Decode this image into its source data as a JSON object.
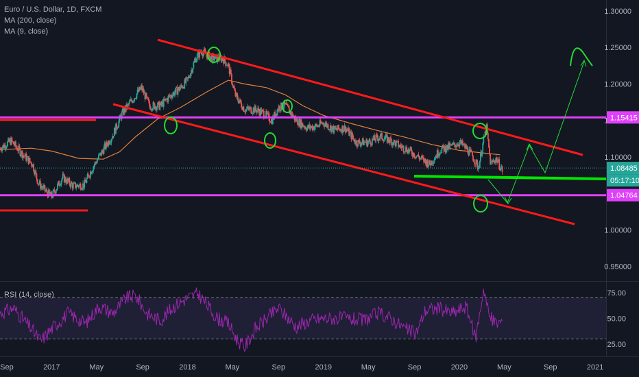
{
  "legend": {
    "symbol": "Euro / U.S. Dollar, 1D, FXCM",
    "ma200": "MA (200, close)",
    "ma9": "MA (9, close)"
  },
  "rsi_legend": "RSI (14, close)",
  "colors": {
    "background": "#131722",
    "candle_up": "#26a69a",
    "candle_down": "#ef5350",
    "ma200": "#e0823d",
    "channel": "#ff1a1a",
    "level_magenta": "#e040fb",
    "support_green": "#00e600",
    "annotation_green": "#22dd33",
    "rsi_line": "#9c27b0",
    "rsi_band": "#7e57c2"
  },
  "chart_data": [
    {
      "type": "line",
      "title": "Euro / U.S. Dollar, 1D, FXCM",
      "y_axis": {
        "ylim": [
          0.93,
          1.315
        ],
        "ticks": [
          "1.30000",
          "1.25000",
          "1.20000",
          "1.15000",
          "1.10000",
          "1.00000",
          "0.95000"
        ],
        "tick_values": [
          1.3,
          1.25,
          1.2,
          1.15,
          1.1,
          1.0,
          0.95
        ]
      },
      "x_axis": {
        "xlim": [
          2016.62,
          2021.08
        ],
        "ticks": [
          "Sep",
          "2017",
          "May",
          "Sep",
          "2018",
          "May",
          "Sep",
          "2019",
          "May",
          "Sep",
          "2020",
          "May",
          "Sep",
          "2021"
        ],
        "tick_values": [
          2016.67,
          2017.0,
          2017.33,
          2017.67,
          2018.0,
          2018.33,
          2018.67,
          2019.0,
          2019.33,
          2019.67,
          2020.0,
          2020.33,
          2020.67,
          2021.0
        ]
      },
      "series": [
        {
          "name": "Euro / U.S. Dollar",
          "x": [
            2016.62,
            2016.7,
            2016.78,
            2016.86,
            2016.9,
            2016.96,
            2017.0,
            2017.08,
            2017.16,
            2017.24,
            2017.3,
            2017.38,
            2017.45,
            2017.52,
            2017.6,
            2017.66,
            2017.72,
            2017.8,
            2017.88,
            2017.95,
            2018.0,
            2018.06,
            2018.1,
            2018.18,
            2018.26,
            2018.3,
            2018.35,
            2018.42,
            2018.5,
            2018.56,
            2018.62,
            2018.67,
            2018.72,
            2018.8,
            2018.88,
            2018.95,
            2019.0,
            2019.08,
            2019.16,
            2019.24,
            2019.33,
            2019.42,
            2019.5,
            2019.56,
            2019.62,
            2019.7,
            2019.78,
            2019.86,
            2019.95,
            2020.0,
            2020.06,
            2020.1,
            2020.14,
            2020.17,
            2020.2,
            2020.23,
            2020.27,
            2020.32
          ],
          "values": [
            1.112,
            1.122,
            1.105,
            1.09,
            1.065,
            1.052,
            1.046,
            1.072,
            1.06,
            1.062,
            1.085,
            1.11,
            1.13,
            1.16,
            1.18,
            1.195,
            1.17,
            1.17,
            1.185,
            1.195,
            1.205,
            1.235,
            1.245,
            1.235,
            1.235,
            1.225,
            1.185,
            1.165,
            1.165,
            1.16,
            1.15,
            1.168,
            1.17,
            1.15,
            1.14,
            1.142,
            1.147,
            1.137,
            1.14,
            1.12,
            1.12,
            1.128,
            1.122,
            1.115,
            1.11,
            1.1,
            1.09,
            1.11,
            1.115,
            1.12,
            1.11,
            1.1,
            1.085,
            1.115,
            1.14,
            1.09,
            1.098,
            1.08
          ]
        },
        {
          "name": "MA (200, close)",
          "x": [
            2016.62,
            2016.85,
            2017.0,
            2017.2,
            2017.38,
            2017.5,
            2017.62,
            2017.78,
            2017.95,
            2018.15,
            2018.3,
            2018.42,
            2018.58,
            2018.72,
            2018.85,
            2019.0,
            2019.2,
            2019.4,
            2019.6,
            2019.8,
            2020.0,
            2020.15,
            2020.3
          ],
          "values": [
            1.11,
            1.112,
            1.108,
            1.098,
            1.097,
            1.107,
            1.128,
            1.152,
            1.168,
            1.19,
            1.205,
            1.2,
            1.195,
            1.185,
            1.17,
            1.157,
            1.146,
            1.136,
            1.127,
            1.117,
            1.109,
            1.106,
            1.103
          ]
        }
      ],
      "current_price": "1.08485",
      "countdown": "05:17:10",
      "price_levels": [
        {
          "label": "1.15415",
          "value": 1.15415
        },
        {
          "label": "1.04764",
          "value": 1.04764
        }
      ]
    },
    {
      "type": "line",
      "title": "RSI (14, close)",
      "y_axis": {
        "ylim": [
          13,
          85
        ],
        "ticks": [
          "75.00",
          "50.00",
          "25.00"
        ],
        "tick_values": [
          75,
          50,
          25
        ]
      },
      "band": [
        30,
        70
      ],
      "series": [
        {
          "name": "RSI (14, close)",
          "x": [
            2016.62,
            2016.72,
            2016.85,
            2016.92,
            2017.0,
            2017.12,
            2017.25,
            2017.35,
            2017.45,
            2017.55,
            2017.62,
            2017.7,
            2017.8,
            2017.9,
            2018.0,
            2018.08,
            2018.16,
            2018.22,
            2018.3,
            2018.36,
            2018.42,
            2018.5,
            2018.6,
            2018.67,
            2018.8,
            2018.9,
            2019.0,
            2019.15,
            2019.3,
            2019.4,
            2019.5,
            2019.6,
            2019.68,
            2019.75,
            2019.85,
            2019.95,
            2020.05,
            2020.12,
            2020.15,
            2020.18,
            2020.22,
            2020.27,
            2020.32
          ],
          "values": [
            55,
            60,
            40,
            28,
            40,
            55,
            45,
            62,
            55,
            70,
            72,
            55,
            48,
            62,
            70,
            74,
            60,
            50,
            45,
            30,
            22,
            40,
            52,
            60,
            42,
            48,
            50,
            50,
            48,
            55,
            50,
            40,
            35,
            58,
            60,
            55,
            62,
            30,
            55,
            80,
            52,
            45,
            48
          ]
        }
      ]
    }
  ]
}
